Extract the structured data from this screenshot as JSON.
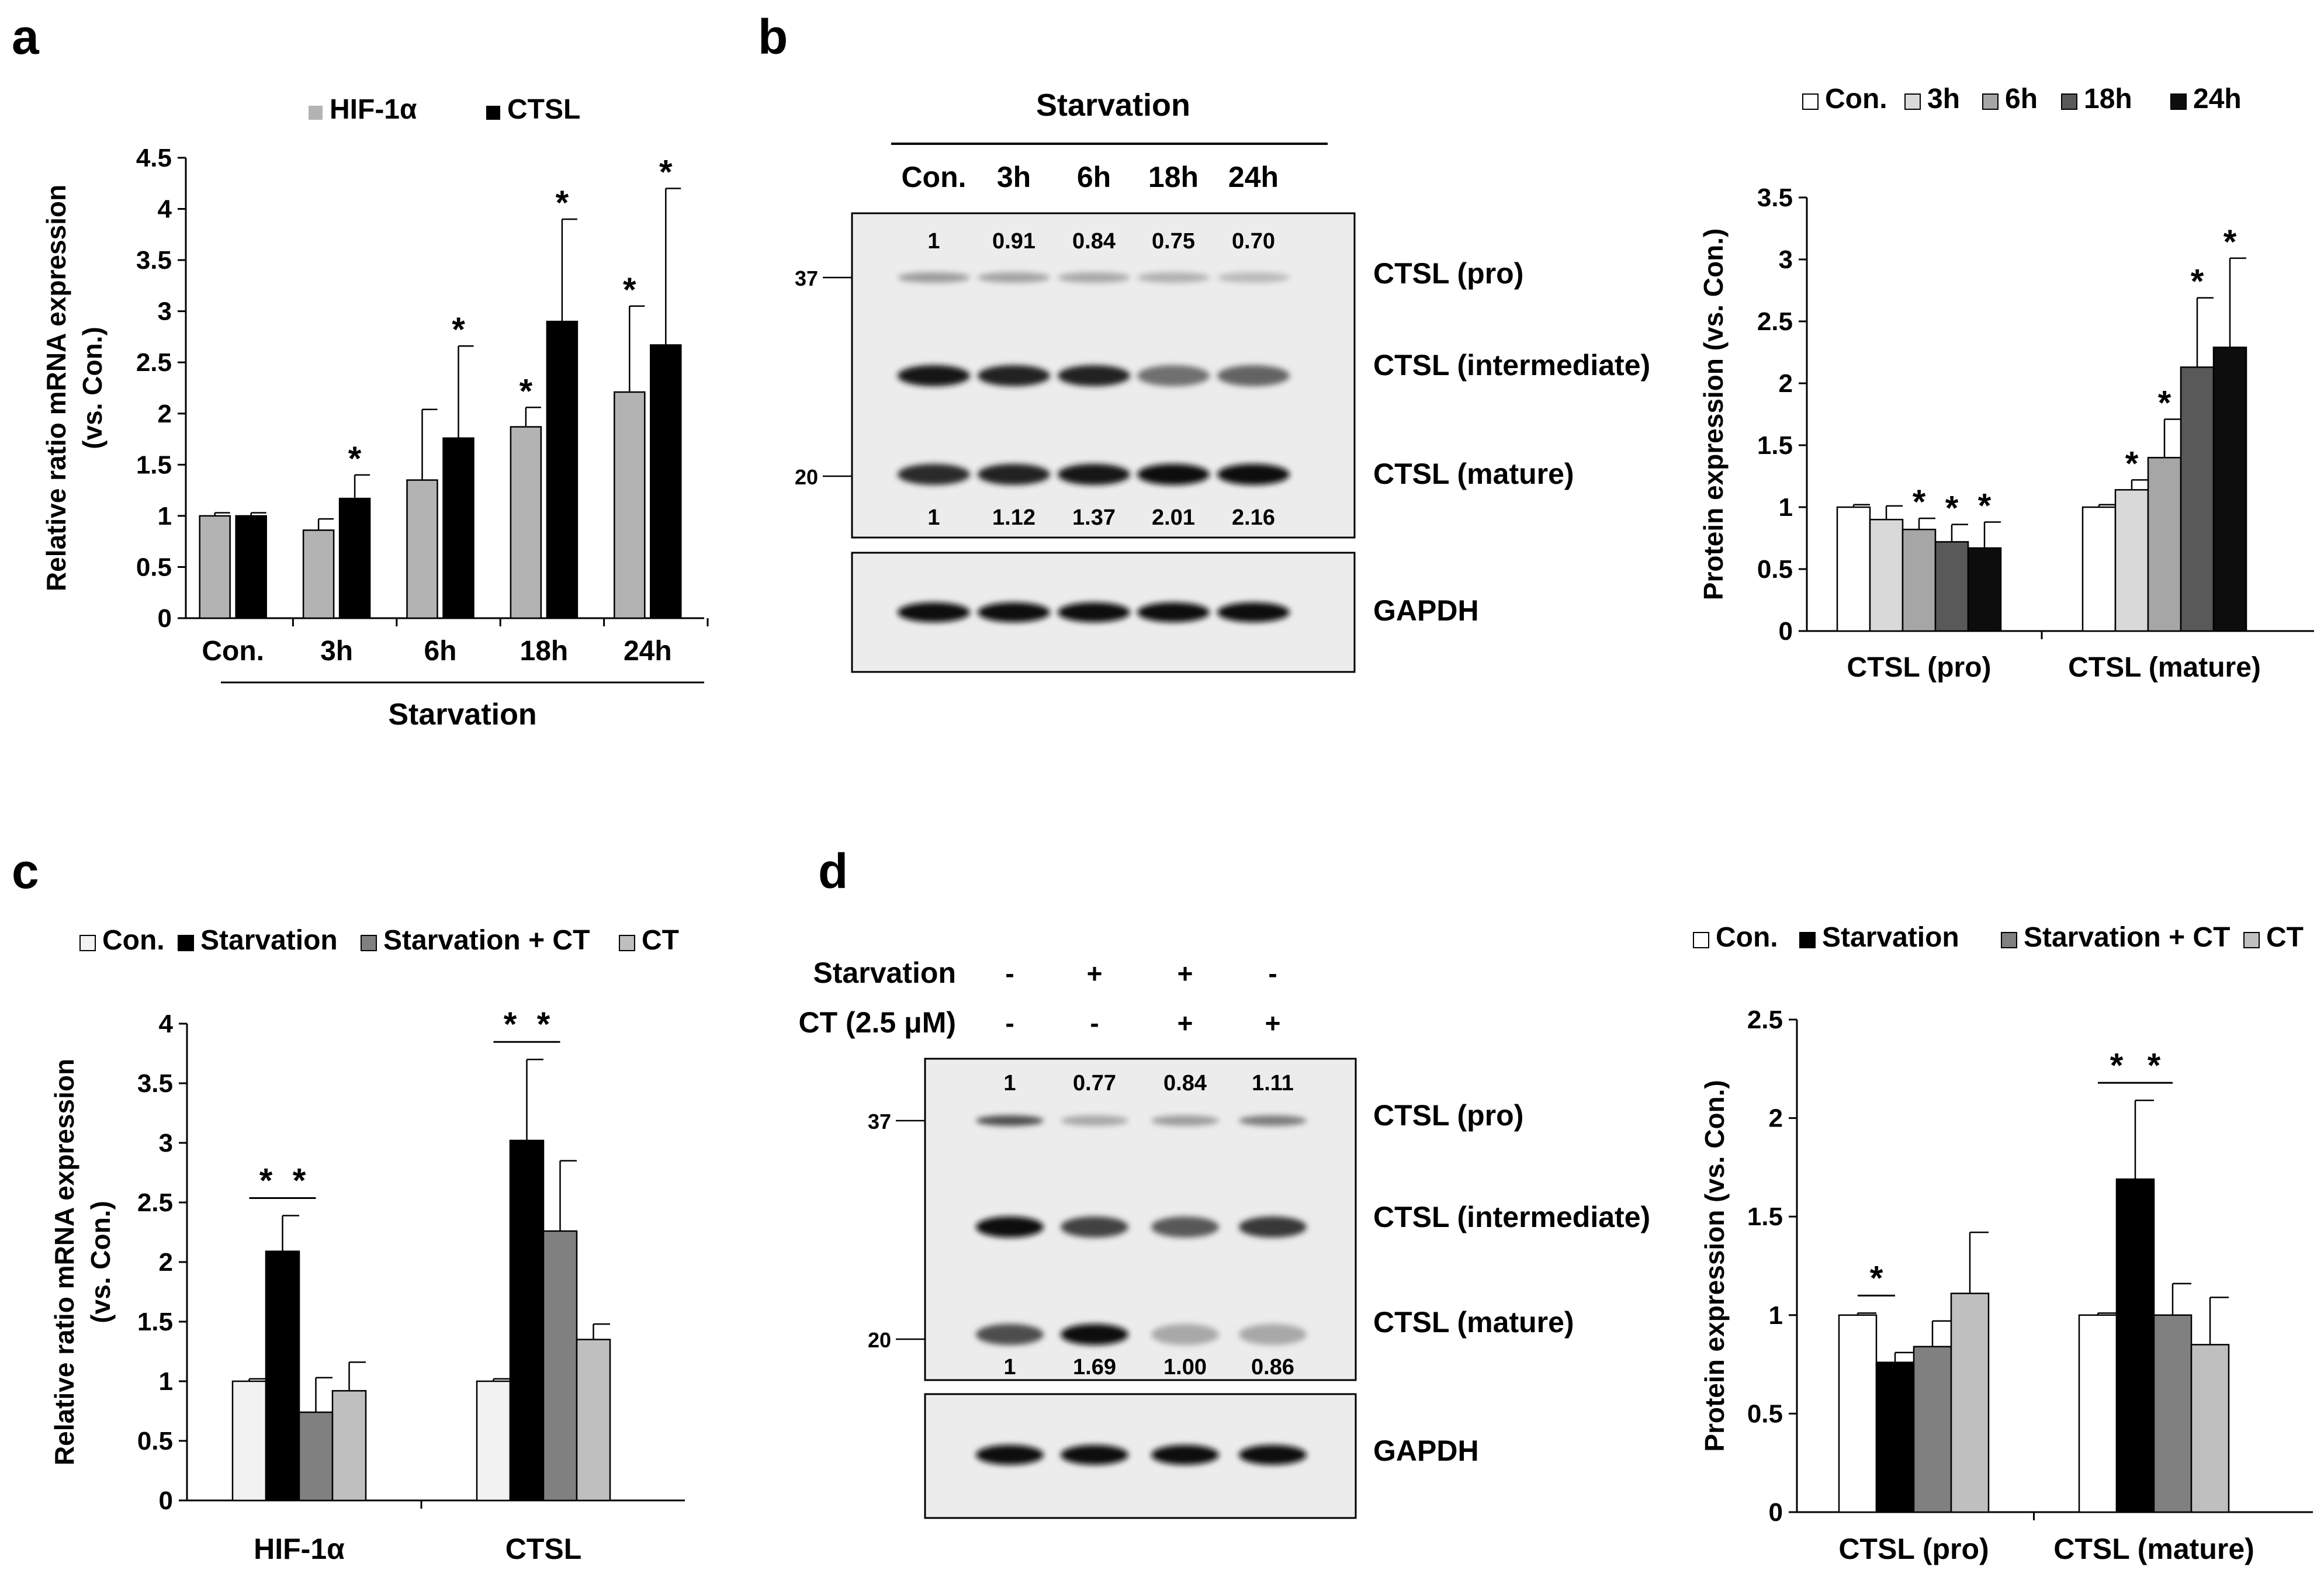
{
  "panel_labels": [
    "a",
    "b",
    "c",
    "d"
  ],
  "chart_data": [
    {
      "panel": "a",
      "type": "bar",
      "title": "",
      "xlabel": "Starvation",
      "ylabel": "Relative ratio mRNA expression (vs. Con.)",
      "ylim": [
        0,
        4.5
      ],
      "yticks": [
        "0",
        "0.5",
        "1",
        "1.5",
        "2",
        "2.5",
        "3",
        "3.5",
        "4",
        "4.5"
      ],
      "categories": [
        "Con.",
        "3h",
        "6h",
        "18h",
        "24h"
      ],
      "legend_position": "top",
      "series": [
        {
          "name": "HIF-1α",
          "color": "#b3b3b3",
          "values": [
            1.0,
            0.86,
            1.35,
            1.87,
            2.21
          ],
          "errors": [
            0.03,
            0.11,
            0.69,
            0.19,
            0.84
          ]
        },
        {
          "name": "CTSL",
          "color": "#000000",
          "values": [
            1.0,
            1.17,
            1.76,
            2.9,
            2.67
          ],
          "errors": [
            0.03,
            0.23,
            0.9,
            1.0,
            1.53
          ]
        }
      ],
      "significance": [
        {
          "series": 1,
          "index": 1,
          "label": "*"
        },
        {
          "series": 1,
          "index": 2,
          "label": "*"
        },
        {
          "series": 0,
          "index": 3,
          "label": "*"
        },
        {
          "series": 1,
          "index": 3,
          "label": "*"
        },
        {
          "series": 0,
          "index": 4,
          "label": "*"
        },
        {
          "series": 1,
          "index": 4,
          "label": "*"
        }
      ]
    },
    {
      "panel": "b",
      "type": "bar",
      "title": "",
      "xlabel": "",
      "ylabel": "Protein expression (vs. Con.)",
      "ylim": [
        0,
        3.5
      ],
      "yticks": [
        "0",
        "0.5",
        "1",
        "1.5",
        "2",
        "2.5",
        "3",
        "3.5"
      ],
      "categories": [
        "CTSL (pro)",
        "CTSL (mature)"
      ],
      "legend_position": "top",
      "series": [
        {
          "name": "Con.",
          "color": "#ffffff",
          "values": [
            1.0,
            1.0
          ],
          "errors": [
            0.02,
            0.02
          ]
        },
        {
          "name": "3h",
          "color": "#d9d9d9",
          "values": [
            0.9,
            1.14
          ],
          "errors": [
            0.11,
            0.08
          ]
        },
        {
          "name": "6h",
          "color": "#a6a6a6",
          "values": [
            0.82,
            1.4
          ],
          "errors": [
            0.09,
            0.31
          ]
        },
        {
          "name": "18h",
          "color": "#595959",
          "values": [
            0.72,
            2.13
          ],
          "errors": [
            0.14,
            0.56
          ]
        },
        {
          "name": "24h",
          "color": "#0d0d0d",
          "values": [
            0.67,
            2.29
          ],
          "errors": [
            0.21,
            0.72
          ]
        }
      ],
      "significance": [
        {
          "series": 2,
          "index": 0,
          "label": "*"
        },
        {
          "series": 3,
          "index": 0,
          "label": "*"
        },
        {
          "series": 4,
          "index": 0,
          "label": "*"
        },
        {
          "series": 1,
          "index": 1,
          "label": "*"
        },
        {
          "series": 2,
          "index": 1,
          "label": "*"
        },
        {
          "series": 3,
          "index": 1,
          "label": "*"
        },
        {
          "series": 4,
          "index": 1,
          "label": "*"
        }
      ]
    },
    {
      "panel": "c",
      "type": "bar",
      "title": "",
      "xlabel": "",
      "ylabel": "Relative ratio mRNA expression (vs. Con.)",
      "ylim": [
        0,
        4
      ],
      "yticks": [
        "0",
        "0.5",
        "1",
        "1.5",
        "2",
        "2.5",
        "3",
        "3.5",
        "4"
      ],
      "categories": [
        "HIF-1α",
        "CTSL"
      ],
      "legend_position": "top",
      "series": [
        {
          "name": "Con.",
          "color": "#f2f2f2",
          "values": [
            1.0,
            1.0
          ],
          "errors": [
            0.02,
            0.02
          ]
        },
        {
          "name": "Starvation",
          "color": "#000000",
          "values": [
            2.09,
            3.02
          ],
          "errors": [
            0.3,
            0.68
          ]
        },
        {
          "name": "Starvation + CT",
          "color": "#808080",
          "values": [
            0.74,
            2.26
          ],
          "errors": [
            0.29,
            0.59
          ]
        },
        {
          "name": "CT",
          "color": "#bfbfbf",
          "values": [
            0.92,
            1.35
          ],
          "errors": [
            0.24,
            0.13
          ]
        }
      ],
      "brackets": [
        {
          "index": 0,
          "from": 0,
          "to": 1,
          "label": "*"
        },
        {
          "index": 0,
          "from": 1,
          "to": 2,
          "label": "*"
        },
        {
          "index": 1,
          "from": 0,
          "to": 1,
          "label": "*"
        },
        {
          "index": 1,
          "from": 1,
          "to": 2,
          "label": "*"
        }
      ]
    },
    {
      "panel": "d",
      "type": "bar",
      "title": "",
      "xlabel": "",
      "ylabel": "Protein expression (vs. Con.)",
      "ylim": [
        0,
        2.5
      ],
      "yticks": [
        "0",
        "0.5",
        "1",
        "1.5",
        "2",
        "2.5"
      ],
      "categories": [
        "CTSL (pro)",
        "CTSL (mature)"
      ],
      "legend_position": "top",
      "series": [
        {
          "name": "Con.",
          "color": "#ffffff",
          "values": [
            1.0,
            1.0
          ],
          "errors": [
            0.01,
            0.01
          ]
        },
        {
          "name": "Starvation",
          "color": "#000000",
          "values": [
            0.76,
            1.69
          ],
          "errors": [
            0.05,
            0.4
          ]
        },
        {
          "name": "Starvation + CT",
          "color": "#808080",
          "values": [
            0.84,
            1.0
          ],
          "errors": [
            0.13,
            0.16
          ]
        },
        {
          "name": "CT",
          "color": "#bfbfbf",
          "values": [
            1.11,
            0.85
          ],
          "errors": [
            0.31,
            0.24
          ]
        }
      ],
      "brackets": [
        {
          "index": 0,
          "from": 0,
          "to": 1,
          "label": "*"
        },
        {
          "index": 1,
          "from": 0,
          "to": 1,
          "label": "*"
        },
        {
          "index": 1,
          "from": 1,
          "to": 2,
          "label": "*"
        }
      ]
    }
  ],
  "blot_b": {
    "header": "Starvation",
    "lanes": [
      "Con.",
      "3h",
      "6h",
      "18h",
      "24h"
    ],
    "pro_values": [
      "1",
      "0.91",
      "0.84",
      "0.75",
      "0.70"
    ],
    "mature_values": [
      "1",
      "1.12",
      "1.37",
      "2.01",
      "2.16"
    ],
    "pro_intensity": [
      0.35,
      0.32,
      0.3,
      0.26,
      0.22
    ],
    "inter_intensity": [
      0.95,
      0.9,
      0.9,
      0.55,
      0.6
    ],
    "mature_intensity": [
      0.85,
      0.9,
      0.95,
      1.0,
      1.0
    ],
    "markers": [
      "37",
      "20"
    ],
    "band_labels": [
      "CTSL (pro)",
      "CTSL (intermediate)",
      "CTSL (mature)"
    ],
    "gapdh_label": "GAPDH"
  },
  "blot_d": {
    "row1_label": "Starvation",
    "row2_label": "CT (2.5 μM)",
    "row1_signs": [
      "-",
      "+",
      "+",
      "-"
    ],
    "row2_signs": [
      "-",
      "-",
      "+",
      "+"
    ],
    "pro_values": [
      "1",
      "0.77",
      "0.84",
      "1.11"
    ],
    "mature_values": [
      "1",
      "1.69",
      "1.00",
      "0.86"
    ],
    "pro_intensity": [
      0.7,
      0.3,
      0.35,
      0.5
    ],
    "inter_intensity": [
      1.0,
      0.75,
      0.65,
      0.8
    ],
    "mature_intensity": [
      0.7,
      1.0,
      0.3,
      0.3
    ],
    "markers": [
      "37",
      "20"
    ],
    "band_labels": [
      "CTSL (pro)",
      "CTSL (intermediate)",
      "CTSL (mature)"
    ],
    "gapdh_label": "GAPDH"
  }
}
